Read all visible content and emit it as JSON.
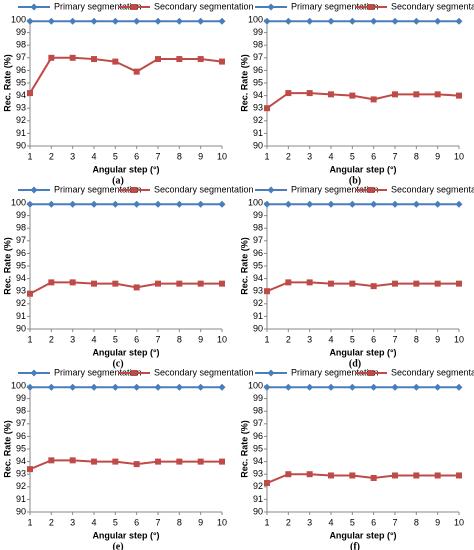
{
  "chart_data": [
    {
      "type": "line",
      "caption": "(a)",
      "xlabel": "Angular step (°)",
      "ylabel": "Rec. Rate (%)",
      "x": [
        1,
        2,
        3,
        4,
        5,
        6,
        7,
        8,
        9,
        10
      ],
      "xlim": [
        1,
        10
      ],
      "xticks": [
        1,
        2,
        3,
        4,
        5,
        6,
        7,
        8,
        9,
        10
      ],
      "ylim": [
        90,
        100
      ],
      "yticks": [
        90,
        91,
        92,
        93,
        94,
        95,
        96,
        97,
        98,
        99,
        100
      ],
      "series": [
        {
          "name": "Primary segmentation",
          "color": "#4a7ebb",
          "marker": "diamond",
          "values": [
            99.9,
            99.9,
            99.9,
            99.9,
            99.9,
            99.9,
            99.9,
            99.9,
            99.9,
            99.9
          ]
        },
        {
          "name": "Secondary segmentation",
          "color": "#be4b48",
          "marker": "square",
          "values": [
            94.2,
            97,
            97,
            96.9,
            96.7,
            95.9,
            96.9,
            96.9,
            96.9,
            96.7
          ]
        }
      ]
    },
    {
      "type": "line",
      "caption": "(b)",
      "xlabel": "Angular step (°)",
      "ylabel": "Rec. Rate (%)",
      "x": [
        1,
        2,
        3,
        4,
        5,
        6,
        7,
        8,
        9,
        10
      ],
      "xlim": [
        1,
        10
      ],
      "xticks": [
        1,
        2,
        3,
        4,
        5,
        6,
        7,
        8,
        9,
        10
      ],
      "ylim": [
        90,
        100
      ],
      "yticks": [
        90,
        91,
        92,
        93,
        94,
        95,
        96,
        97,
        98,
        99,
        100
      ],
      "series": [
        {
          "name": "Primary segmentation",
          "color": "#4a7ebb",
          "marker": "diamond",
          "values": [
            99.9,
            99.9,
            99.9,
            99.9,
            99.9,
            99.9,
            99.9,
            99.9,
            99.9,
            99.9
          ]
        },
        {
          "name": "Secondary segmentation",
          "color": "#be4b48",
          "marker": "square",
          "values": [
            93.0,
            94.2,
            94.2,
            94.1,
            94.0,
            93.7,
            94.1,
            94.1,
            94.1,
            94.0
          ]
        }
      ]
    },
    {
      "type": "line",
      "caption": "(c)",
      "xlabel": "Angular step (°)",
      "ylabel": "Rec. Rate (%)",
      "x": [
        1,
        2,
        3,
        4,
        5,
        6,
        7,
        8,
        9,
        10
      ],
      "xlim": [
        1,
        10
      ],
      "xticks": [
        1,
        2,
        3,
        4,
        5,
        6,
        7,
        8,
        9,
        10
      ],
      "ylim": [
        90,
        100
      ],
      "yticks": [
        90,
        91,
        92,
        93,
        94,
        95,
        96,
        97,
        98,
        99,
        100
      ],
      "series": [
        {
          "name": "Primary segmentation",
          "color": "#4a7ebb",
          "marker": "diamond",
          "values": [
            99.9,
            99.9,
            99.9,
            99.9,
            99.9,
            99.9,
            99.9,
            99.9,
            99.9,
            99.9
          ]
        },
        {
          "name": "Secondary segmentation",
          "color": "#be4b48",
          "marker": "square",
          "values": [
            92.8,
            93.7,
            93.7,
            93.6,
            93.6,
            93.3,
            93.6,
            93.6,
            93.6,
            93.6
          ]
        }
      ]
    },
    {
      "type": "line",
      "caption": "(d)",
      "xlabel": "Angular step (°)",
      "ylabel": "Rec. Rate (%)",
      "x": [
        1,
        2,
        3,
        4,
        5,
        6,
        7,
        8,
        9,
        10
      ],
      "xlim": [
        1,
        10
      ],
      "xticks": [
        1,
        2,
        3,
        4,
        5,
        6,
        7,
        8,
        9,
        10
      ],
      "ylim": [
        90,
        100
      ],
      "yticks": [
        90,
        91,
        92,
        93,
        94,
        95,
        96,
        97,
        98,
        99,
        100
      ],
      "series": [
        {
          "name": "Primary segmentation",
          "color": "#4a7ebb",
          "marker": "diamond",
          "values": [
            99.9,
            99.9,
            99.9,
            99.9,
            99.9,
            99.9,
            99.9,
            99.9,
            99.9,
            99.9
          ]
        },
        {
          "name": "Secondary segmentation",
          "color": "#be4b48",
          "marker": "square",
          "values": [
            93.0,
            93.7,
            93.7,
            93.6,
            93.6,
            93.4,
            93.6,
            93.6,
            93.6,
            93.6
          ]
        }
      ]
    },
    {
      "type": "line",
      "caption": "(e)",
      "xlabel": "Angular step (°)",
      "ylabel": "Rec. Rate (%)",
      "x": [
        1,
        2,
        3,
        4,
        5,
        6,
        7,
        8,
        9,
        10
      ],
      "xlim": [
        1,
        10
      ],
      "xticks": [
        1,
        2,
        3,
        4,
        5,
        6,
        7,
        8,
        9,
        10
      ],
      "ylim": [
        90,
        100
      ],
      "yticks": [
        90,
        91,
        92,
        93,
        94,
        95,
        96,
        97,
        98,
        99,
        100
      ],
      "series": [
        {
          "name": "Primary segmentation",
          "color": "#4a7ebb",
          "marker": "diamond",
          "values": [
            99.9,
            99.9,
            99.9,
            99.9,
            99.9,
            99.9,
            99.9,
            99.9,
            99.9,
            99.9
          ]
        },
        {
          "name": "Secondary segmentation",
          "color": "#be4b48",
          "marker": "square",
          "values": [
            93.4,
            94.1,
            94.1,
            94.0,
            94.0,
            93.8,
            94.0,
            94.0,
            94.0,
            94.0
          ]
        }
      ]
    },
    {
      "type": "line",
      "caption": "(f)",
      "xlabel": "Angular step (°)",
      "ylabel": "Rec. Rate (%)",
      "x": [
        1,
        2,
        3,
        4,
        5,
        6,
        7,
        8,
        9,
        10
      ],
      "xlim": [
        1,
        10
      ],
      "xticks": [
        1,
        2,
        3,
        4,
        5,
        6,
        7,
        8,
        9,
        10
      ],
      "ylim": [
        90,
        100
      ],
      "yticks": [
        90,
        91,
        92,
        93,
        94,
        95,
        96,
        97,
        98,
        99,
        100
      ],
      "series": [
        {
          "name": "Primary segmentation",
          "color": "#4a7ebb",
          "marker": "diamond",
          "values": [
            99.9,
            99.9,
            99.9,
            99.9,
            99.9,
            99.9,
            99.9,
            99.9,
            99.9,
            99.9
          ]
        },
        {
          "name": "Secondary segmentation",
          "color": "#be4b48",
          "marker": "square",
          "values": [
            92.3,
            93.0,
            93.0,
            92.9,
            92.9,
            92.7,
            92.9,
            92.9,
            92.9,
            92.9
          ]
        }
      ]
    }
  ]
}
